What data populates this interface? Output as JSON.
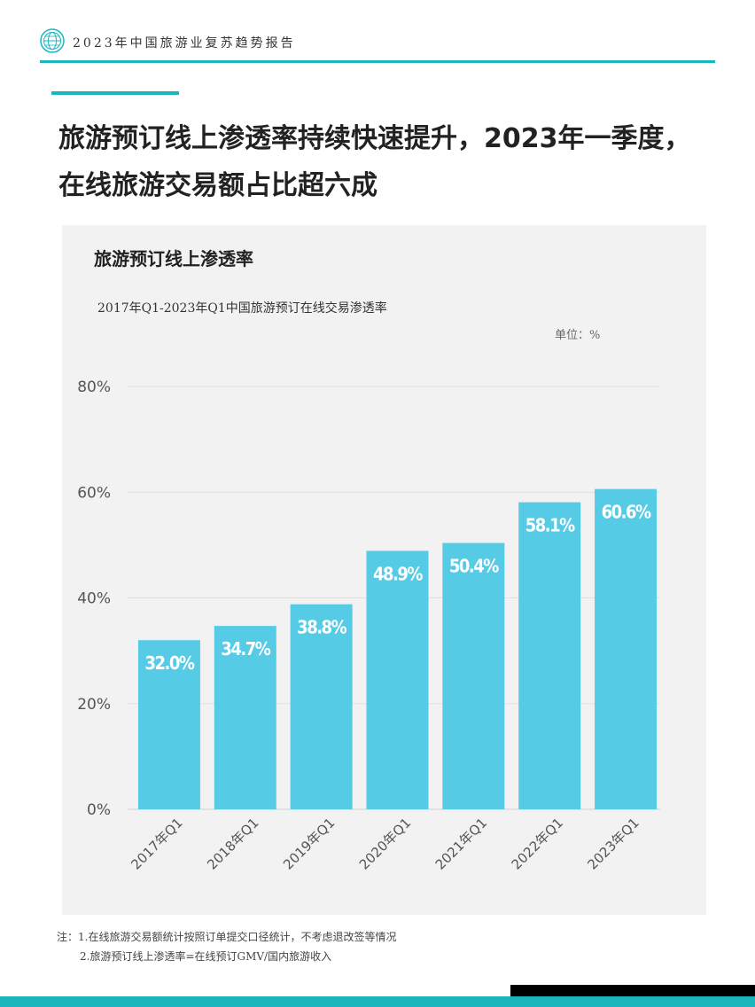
{
  "header": {
    "report_title": "2023年中国旅游业复苏趋势报告",
    "logo_icon": "globe-icon",
    "accent_color": "#1ab6be"
  },
  "headline": {
    "line1": "旅游预订线上渗透率持续快速提升，2023年一季度，",
    "line2": "在线旅游交易额占比超六成"
  },
  "panel": {
    "title": "旅游预订线上渗透率",
    "unit": "单位：%"
  },
  "chart_data": {
    "type": "bar",
    "title": "2017年Q1-2023年Q1中国旅游预订在线交易渗透率",
    "categories": [
      "2017年Q1",
      "2018年Q1",
      "2019年Q1",
      "2020年Q1",
      "2021年Q1",
      "2022年Q1",
      "2023年Q1"
    ],
    "values": [
      32.0,
      34.7,
      38.8,
      48.9,
      50.4,
      58.1,
      60.6
    ],
    "value_labels": [
      "32.0%",
      "34.7%",
      "38.8%",
      "48.9%",
      "50.4%",
      "58.1%",
      "60.6%"
    ],
    "y_ticks": [
      0,
      20,
      40,
      60,
      80
    ],
    "y_tick_labels": [
      "0%",
      "20%",
      "40%",
      "60%",
      "80%"
    ],
    "ylim": [
      0,
      80
    ],
    "bar_color": "#56cbe6",
    "grid": true,
    "xlabel": "",
    "ylabel": ""
  },
  "notes": {
    "line1": "注：1.在线旅游交易额统计按照订单提交口径统计，不考虑退改签等情况",
    "line2": "2.旅游预订线上渗透率=在线预订GMV/国内旅游收入"
  }
}
